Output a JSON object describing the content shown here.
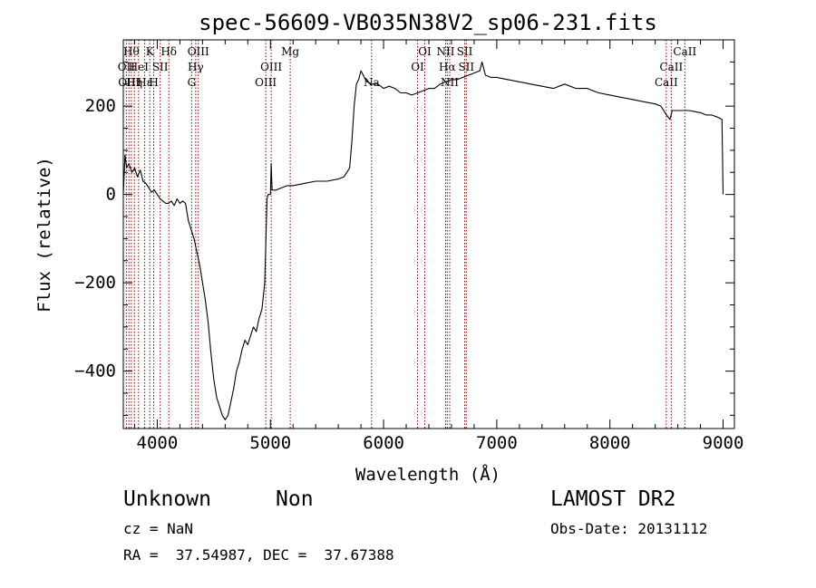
{
  "chart_data": {
    "type": "line",
    "title": "spec-56609-VB035N38V2_sp06-231.fits",
    "xlabel": "Wavelength (Å)",
    "ylabel": "Flux (relative)",
    "xlim": [
      3700,
      9100
    ],
    "ylim": [
      -530,
      350
    ],
    "xticks": [
      4000,
      5000,
      6000,
      7000,
      8000,
      9000
    ],
    "yticks": [
      -400,
      -200,
      0,
      200
    ],
    "grid": false,
    "series": [
      {
        "x": [
          3700,
          3715,
          3730,
          3750,
          3775,
          3800,
          3825,
          3850,
          3875,
          3900,
          3925,
          3950,
          3975,
          4000,
          4025,
          4050,
          4075,
          4100,
          4125,
          4150,
          4175,
          4200,
          4225,
          4250,
          4275,
          4300,
          4325,
          4350,
          4375,
          4400,
          4425,
          4450,
          4475,
          4500,
          4525,
          4550,
          4575,
          4600,
          4625,
          4650,
          4675,
          4700,
          4725,
          4750,
          4775,
          4800,
          4825,
          4850,
          4875,
          4900,
          4925,
          4950,
          4960,
          4970,
          4980,
          5000,
          5007,
          5015,
          5050,
          5100,
          5150,
          5200,
          5300,
          5400,
          5500,
          5600,
          5650,
          5700,
          5720,
          5740,
          5760,
          5780,
          5800,
          5850,
          5900,
          5950,
          6000,
          6050,
          6100,
          6150,
          6200,
          6250,
          6300,
          6350,
          6400,
          6450,
          6500,
          6550,
          6600,
          6650,
          6700,
          6750,
          6800,
          6850,
          6870,
          6880,
          6900,
          6950,
          7000,
          7100,
          7200,
          7300,
          7400,
          7500,
          7600,
          7700,
          7800,
          7900,
          8000,
          8100,
          8200,
          8300,
          8400,
          8450,
          8500,
          8530,
          8550,
          8600,
          8700,
          8800,
          8850,
          8900,
          8950,
          8990,
          9000
        ],
        "y": [
          0,
          90,
          60,
          70,
          50,
          60,
          40,
          55,
          30,
          25,
          15,
          5,
          10,
          0,
          -10,
          -15,
          -20,
          -20,
          -15,
          -25,
          -10,
          -20,
          -15,
          -20,
          -60,
          -80,
          -100,
          -130,
          -160,
          -200,
          -240,
          -290,
          -360,
          -420,
          -460,
          -480,
          -500,
          -510,
          -500,
          -470,
          -440,
          -400,
          -380,
          -350,
          -330,
          -340,
          -320,
          -300,
          -310,
          -280,
          -260,
          -200,
          -100,
          -10,
          0,
          0,
          70,
          10,
          10,
          15,
          20,
          20,
          25,
          30,
          30,
          35,
          40,
          60,
          120,
          200,
          250,
          260,
          280,
          255,
          250,
          250,
          240,
          245,
          240,
          230,
          230,
          225,
          230,
          235,
          240,
          240,
          250,
          255,
          260,
          260,
          265,
          270,
          275,
          280,
          300,
          290,
          270,
          265,
          265,
          260,
          255,
          250,
          245,
          240,
          250,
          240,
          240,
          230,
          225,
          220,
          215,
          210,
          205,
          200,
          180,
          170,
          190,
          190,
          190,
          185,
          180,
          180,
          175,
          170,
          0
        ]
      }
    ],
    "line_markers": [
      {
        "wavelength": 3727,
        "label": "OII",
        "row": 2
      },
      {
        "wavelength": 3750,
        "label": "OIII",
        "row": 3
      },
      {
        "wavelength": 3771,
        "label": "Hθ",
        "row": 1
      },
      {
        "wavelength": 3798,
        "label": "Hη",
        "row": 3
      },
      {
        "wavelength": 3835,
        "label": "HeI",
        "row": 2
      },
      {
        "wavelength": 3889,
        "label": "Hε",
        "row": 3
      },
      {
        "wavelength": 3934,
        "label": "K",
        "row": 1
      },
      {
        "wavelength": 3969,
        "label": "H",
        "row": 3
      },
      {
        "wavelength": 4026,
        "label": "SII",
        "row": 2
      },
      {
        "wavelength": 4102,
        "label": "Hδ",
        "row": 1
      },
      {
        "wavelength": 4304,
        "label": "G",
        "row": 3
      },
      {
        "wavelength": 4340,
        "label": "Hγ",
        "row": 2
      },
      {
        "wavelength": 4363,
        "label": "OIII",
        "row": 1
      },
      {
        "wavelength": 4959,
        "label": "OIII",
        "row": 3
      },
      {
        "wavelength": 5007,
        "label": "OIII",
        "row": 2
      },
      {
        "wavelength": 5175,
        "label": "Mg",
        "row": 1
      },
      {
        "wavelength": 5894,
        "label": "Na",
        "row": 3
      },
      {
        "wavelength": 6300,
        "label": "OI",
        "row": 2
      },
      {
        "wavelength": 6364,
        "label": "OI",
        "row": 1
      },
      {
        "wavelength": 6548,
        "label": "NII",
        "row": 1
      },
      {
        "wavelength": 6563,
        "label": "Hα",
        "row": 2
      },
      {
        "wavelength": 6584,
        "label": "NII",
        "row": 3
      },
      {
        "wavelength": 6717,
        "label": "SII",
        "row": 1
      },
      {
        "wavelength": 6731,
        "label": "SII",
        "row": 2
      },
      {
        "wavelength": 8498,
        "label": "CaII",
        "row": 3
      },
      {
        "wavelength": 8542,
        "label": "CaII",
        "row": 2
      },
      {
        "wavelength": 8662,
        "label": "CaII",
        "row": 1
      }
    ],
    "line_color": "#000000",
    "marker_color": "#8b0000"
  },
  "info": {
    "class": "Unknown",
    "subclass": "Non",
    "cz": "cz = NaN",
    "radec": "RA =  37.54987, DEC =  37.67388",
    "survey": "LAMOST DR2",
    "obsdate": "Obs-Date: 20131112"
  }
}
